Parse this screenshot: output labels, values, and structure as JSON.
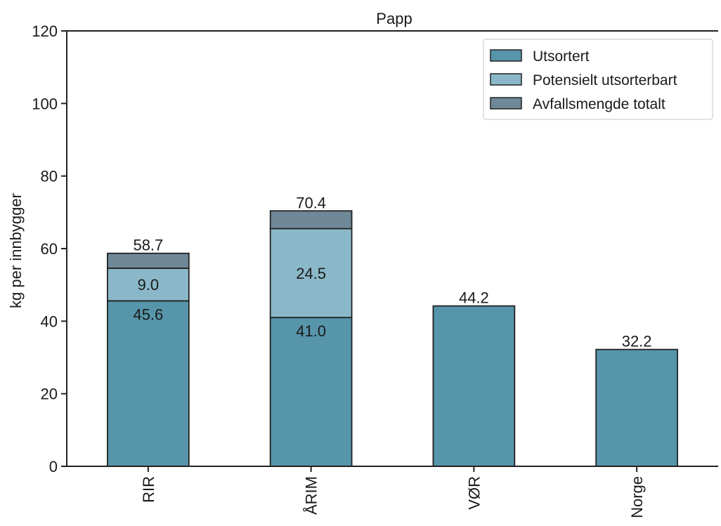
{
  "chart_data": {
    "type": "bar",
    "stacked": true,
    "title": "Papp",
    "xlabel": "",
    "ylabel": "kg per innbygger",
    "ylim": [
      0,
      120
    ],
    "yticks": [
      0,
      20,
      40,
      60,
      80,
      100,
      120
    ],
    "grid": false,
    "legend_position": "top-right",
    "categories": [
      "RIR",
      "ÅRIM",
      "VØR",
      "Norge"
    ],
    "series": [
      {
        "name": "Utsortert",
        "color": "#5795ab",
        "values": [
          45.6,
          41.0,
          44.2,
          32.2
        ]
      },
      {
        "name": "Potensielt utsorterbart",
        "color": "#8ab8c8",
        "values": [
          9.0,
          24.5,
          0,
          0
        ]
      },
      {
        "name": "Avfallsmengde totalt",
        "color": "#6e8897",
        "values": [
          4.1,
          4.9,
          0,
          0
        ]
      }
    ],
    "data_labels": [
      {
        "category": "RIR",
        "series": "Utsortert",
        "text": "45.6"
      },
      {
        "category": "RIR",
        "series": "Potensielt utsorterbart",
        "text": "9.0"
      },
      {
        "category": "RIR",
        "series": "Avfallsmengde totalt",
        "text": "58.7"
      },
      {
        "category": "ÅRIM",
        "series": "Utsortert",
        "text": "41.0"
      },
      {
        "category": "ÅRIM",
        "series": "Potensielt utsorterbart",
        "text": "24.5"
      },
      {
        "category": "ÅRIM",
        "series": "Avfallsmengde totalt",
        "text": "70.4"
      },
      {
        "category": "VØR",
        "series": "Utsortert",
        "text": "44.2"
      },
      {
        "category": "Norge",
        "series": "Utsortert",
        "text": "32.2"
      }
    ]
  }
}
